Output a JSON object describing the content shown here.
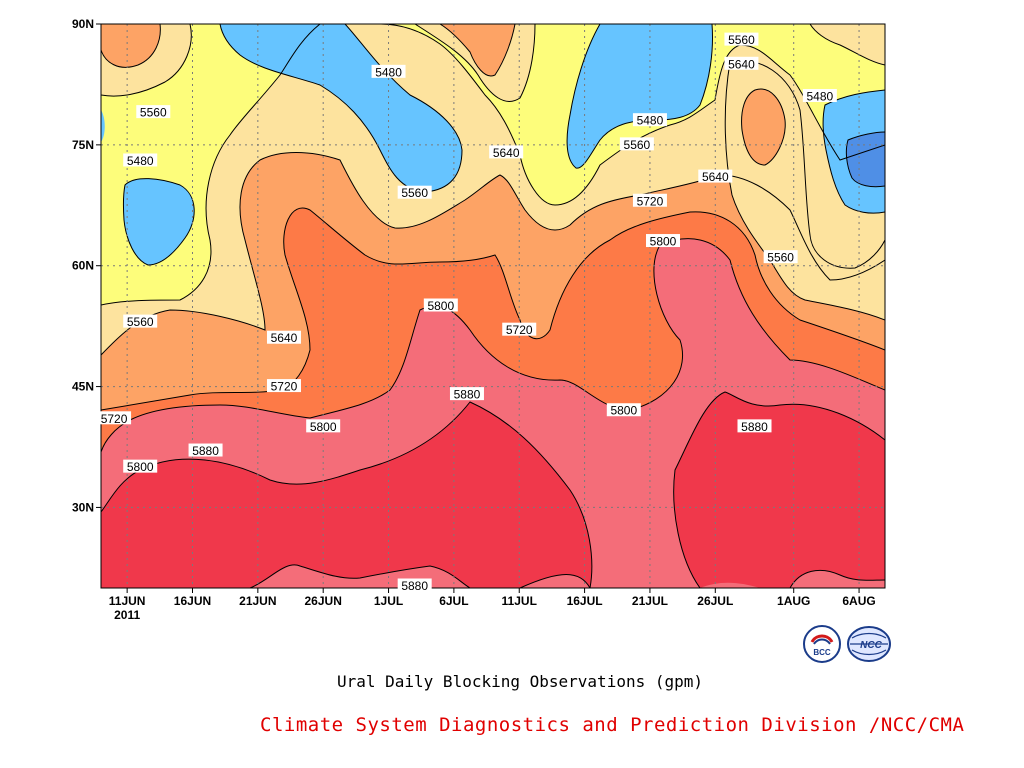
{
  "chart_data": {
    "type": "contour",
    "title": "Ural Daily Blocking Observations (gpm)",
    "x_ticks": [
      "11JUN",
      "16JUN",
      "21JUN",
      "26JUN",
      "1JUL",
      "6JUL",
      "11JUL",
      "16JUL",
      "21JUL",
      "26JUL",
      "1AUG",
      "6AUG"
    ],
    "x_year_label": "2011",
    "y_ticks": [
      "90N",
      "75N",
      "60N",
      "45N",
      "30N"
    ],
    "ylim": [
      20,
      90
    ],
    "levels": [
      5480,
      5560,
      5640,
      5720,
      5800,
      5880
    ],
    "level_colors": {
      "below_5400": "#4f8fe6",
      "5400_5480": "#66c4ff",
      "5480_5560": "#fdfd7b",
      "5560_5640": "#fde39e",
      "5640_5720": "#fda365",
      "5720_5800": "#fd7a47",
      "5800_5880": "#f46d79",
      "above_5880": "#f0384b"
    },
    "contour_labels": [
      {
        "value": "5560",
        "date": "13JUN",
        "lat": 79
      },
      {
        "value": "5480",
        "date": "12JUN",
        "lat": 73
      },
      {
        "value": "5560",
        "date": "12JUN",
        "lat": 53
      },
      {
        "value": "5720",
        "date": "10JUN",
        "lat": 41
      },
      {
        "value": "5800",
        "date": "12JUN",
        "lat": 35
      },
      {
        "value": "5880",
        "date": "17JUN",
        "lat": 37
      },
      {
        "value": "5640",
        "date": "23JUN",
        "lat": 51
      },
      {
        "value": "5720",
        "date": "23JUN",
        "lat": 45
      },
      {
        "value": "5800",
        "date": "26JUN",
        "lat": 40
      },
      {
        "value": "5480",
        "date": "1JUL",
        "lat": 84
      },
      {
        "value": "5560",
        "date": "3JUL",
        "lat": 69
      },
      {
        "value": "5800",
        "date": "5JUL",
        "lat": 55
      },
      {
        "value": "5880",
        "date": "7JUL",
        "lat": 44
      },
      {
        "value": "5640",
        "date": "10JUL",
        "lat": 74
      },
      {
        "value": "5720",
        "date": "11JUL",
        "lat": 52
      },
      {
        "value": "5880",
        "date": "3JUL",
        "lat": 20
      },
      {
        "value": "5560",
        "date": "20JUL",
        "lat": 75
      },
      {
        "value": "5480",
        "date": "21JUL",
        "lat": 78
      },
      {
        "value": "5720",
        "date": "21JUL",
        "lat": 68
      },
      {
        "value": "5800",
        "date": "22JUL",
        "lat": 63
      },
      {
        "value": "5800",
        "date": "19JUL",
        "lat": 42
      },
      {
        "value": "5640",
        "date": "26JUL",
        "lat": 71
      },
      {
        "value": "5560",
        "date": "28JUL",
        "lat": 88
      },
      {
        "value": "5640",
        "date": "28JUL",
        "lat": 85
      },
      {
        "value": "5480",
        "date": "3AUG",
        "lat": 81
      },
      {
        "value": "5560",
        "date": "31JUL",
        "lat": 61
      },
      {
        "value": "5880",
        "date": "29JUL",
        "lat": 40
      }
    ]
  },
  "footer": {
    "caption": "Ural Daily Blocking Observations (gpm)",
    "credit": "Climate System Diagnostics and Prediction Division /NCC/CMA"
  },
  "logos": [
    {
      "name": "bcc-logo",
      "text": "BCC"
    },
    {
      "name": "ncc-logo",
      "text": "NCC"
    }
  ]
}
